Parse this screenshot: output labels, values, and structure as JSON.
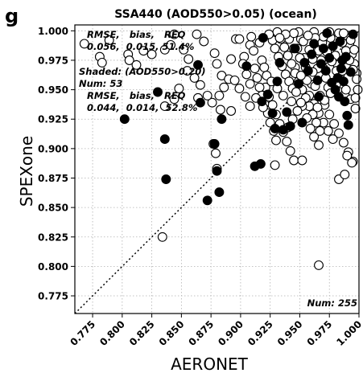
{
  "panel_label": "g",
  "chart_data": {
    "type": "scatter",
    "title": "SSA440  (AOD550>0.05) (ocean)",
    "xlabel": "AERONET",
    "ylabel": "SPEXone",
    "xlim": [
      0.76,
      1.0
    ],
    "ylim": [
      0.76,
      1.005
    ],
    "x_ticks": [
      0.775,
      0.8,
      0.825,
      0.85,
      0.875,
      0.9,
      0.925,
      0.95,
      0.975,
      1.0
    ],
    "x_tick_labels": [
      "0.775",
      "0.800",
      "0.825",
      "0.850",
      "0.875",
      "0.900",
      "0.925",
      "0.950",
      "0.975",
      "1.000"
    ],
    "y_ticks": [
      0.775,
      0.8,
      0.825,
      0.85,
      0.875,
      0.9,
      0.925,
      0.95,
      0.975,
      1.0
    ],
    "y_tick_labels": [
      "0.775",
      "0.800",
      "0.825",
      "0.850",
      "0.875",
      "0.900",
      "0.925",
      "0.950",
      "0.975",
      "1.000"
    ],
    "grid": true,
    "one_to_one_line": true,
    "stats_all": {
      "header": "RMSE,   bias,   REQ",
      "values": "0.056,  0.015, 51.4%"
    },
    "shaded_label": "Shaded: (AOD550>0.20)",
    "shaded_num": "Num: 53",
    "stats_shaded": {
      "header": "RMSE,   bias,   REQ",
      "values": "0.044,  0.014,  52.8%"
    },
    "num_all": "Num: 255",
    "series": [
      {
        "name": "all",
        "fill": "#ffffff",
        "points": [
          [
            0.768,
            0.989
          ],
          [
            0.781,
            0.978
          ],
          [
            0.783,
            0.973
          ],
          [
            0.789,
            0.992
          ],
          [
            0.805,
            0.98
          ],
          [
            0.806,
            0.975
          ],
          [
            0.812,
            0.971
          ],
          [
            0.818,
            0.983
          ],
          [
            0.825,
            0.98
          ],
          [
            0.836,
            0.984
          ],
          [
            0.841,
            0.988
          ],
          [
            0.844,
            0.997
          ],
          [
            0.852,
            0.984
          ],
          [
            0.856,
            0.976
          ],
          [
            0.863,
            0.997
          ],
          [
            0.869,
            0.991
          ],
          [
            0.878,
            0.981
          ],
          [
            0.88,
            0.972
          ],
          [
            0.884,
            0.962
          ],
          [
            0.892,
            0.976
          ],
          [
            0.896,
            0.993
          ],
          [
            0.899,
            0.993
          ],
          [
            0.903,
            0.978
          ],
          [
            0.908,
            0.988
          ],
          [
            0.911,
            0.983
          ],
          [
            0.918,
            0.975
          ],
          [
            0.92,
            0.969
          ],
          [
            0.922,
            0.962
          ],
          [
            0.927,
            0.992
          ],
          [
            0.929,
            0.985
          ],
          [
            0.932,
            0.978
          ],
          [
            0.935,
            0.97
          ],
          [
            0.938,
            0.963
          ],
          [
            0.941,
            0.957
          ],
          [
            0.944,
            0.951
          ],
          [
            0.946,
            0.969
          ],
          [
            0.948,
            0.985
          ],
          [
            0.951,
            0.993
          ],
          [
            0.954,
            0.977
          ],
          [
            0.957,
            0.962
          ],
          [
            0.96,
            0.955
          ],
          [
            0.962,
            0.999
          ],
          [
            0.964,
            0.991
          ],
          [
            0.966,
            0.983
          ],
          [
            0.968,
            0.975
          ],
          [
            0.97,
            0.968
          ],
          [
            0.972,
            0.96
          ],
          [
            0.974,
            0.952
          ],
          [
            0.976,
            0.994
          ],
          [
            0.978,
            0.987
          ],
          [
            0.98,
            0.979
          ],
          [
            0.982,
            0.971
          ],
          [
            0.984,
            0.963
          ],
          [
            0.986,
            0.955
          ],
          [
            0.988,
            0.946
          ],
          [
            0.99,
            0.996
          ],
          [
            0.992,
            0.988
          ],
          [
            0.994,
            0.98
          ],
          [
            0.996,
            0.972
          ],
          [
            0.998,
            0.964
          ],
          [
            0.949,
            0.999
          ],
          [
            0.953,
            0.991
          ],
          [
            0.958,
            0.984
          ],
          [
            0.961,
            0.976
          ],
          [
            0.965,
            0.968
          ],
          [
            0.969,
            0.99
          ],
          [
            0.973,
            0.982
          ],
          [
            0.977,
            0.974
          ],
          [
            0.981,
            0.966
          ],
          [
            0.985,
            0.958
          ],
          [
            0.989,
            0.95
          ],
          [
            0.993,
            0.942
          ],
          [
            0.997,
            0.934
          ],
          [
            0.941,
            0.993
          ],
          [
            0.945,
            0.985
          ],
          [
            0.95,
            0.977
          ],
          [
            0.955,
            0.969
          ],
          [
            0.959,
            0.961
          ],
          [
            0.963,
            0.953
          ],
          [
            0.967,
            0.945
          ],
          [
            0.971,
            0.937
          ],
          [
            0.975,
            0.929
          ],
          [
            0.979,
            0.921
          ],
          [
            0.983,
            0.913
          ],
          [
            0.987,
            0.905
          ],
          [
            0.991,
            0.897
          ],
          [
            0.995,
            0.889
          ],
          [
            0.958,
            0.945
          ],
          [
            0.962,
            0.938
          ],
          [
            0.966,
            0.93
          ],
          [
            0.97,
            0.922
          ],
          [
            0.974,
            0.915
          ],
          [
            0.978,
            0.908
          ],
          [
            0.931,
            0.999
          ],
          [
            0.934,
            0.993
          ],
          [
            0.937,
            0.986
          ],
          [
            0.94,
            0.979
          ],
          [
            0.943,
            0.972
          ],
          [
            0.946,
            0.964
          ],
          [
            0.949,
            0.957
          ],
          [
            0.952,
            0.95
          ],
          [
            0.955,
            0.943
          ],
          [
            0.958,
            0.936
          ],
          [
            0.961,
            0.929
          ],
          [
            0.964,
            0.922
          ],
          [
            0.967,
            0.915
          ],
          [
            0.952,
            0.936
          ],
          [
            0.956,
            0.926
          ],
          [
            0.959,
            0.917
          ],
          [
            0.962,
            0.91
          ],
          [
            0.966,
            0.903
          ],
          [
            0.921,
            0.952
          ],
          [
            0.924,
            0.944
          ],
          [
            0.927,
            0.937
          ],
          [
            0.93,
            0.929
          ],
          [
            0.933,
            0.921
          ],
          [
            0.936,
            0.914
          ],
          [
            0.939,
            0.906
          ],
          [
            0.942,
            0.898
          ],
          [
            0.945,
            0.89
          ],
          [
            0.912,
            0.968
          ],
          [
            0.914,
            0.96
          ],
          [
            0.916,
            0.952
          ],
          [
            0.918,
            0.945
          ],
          [
            0.92,
            0.938
          ],
          [
            0.923,
            0.93
          ],
          [
            0.925,
            0.922
          ],
          [
            0.928,
            0.915
          ],
          [
            0.93,
            0.907
          ],
          [
            0.902,
            0.972
          ],
          [
            0.905,
            0.963
          ],
          [
            0.908,
            0.955
          ],
          [
            0.89,
            0.959
          ],
          [
            0.886,
            0.952
          ],
          [
            0.882,
            0.945
          ],
          [
            0.876,
            0.939
          ],
          [
            0.872,
            0.945
          ],
          [
            0.866,
            0.954
          ],
          [
            0.861,
            0.96
          ],
          [
            0.855,
            0.966
          ],
          [
            0.848,
            0.951
          ],
          [
            0.844,
            0.942
          ],
          [
            0.836,
            0.936
          ],
          [
            0.864,
            0.943
          ],
          [
            0.877,
            0.904
          ],
          [
            0.879,
            0.896
          ],
          [
            0.88,
            0.883
          ],
          [
            0.892,
            0.932
          ],
          [
            0.883,
            0.933
          ],
          [
            0.929,
            0.886
          ],
          [
            0.952,
            0.89
          ],
          [
            0.983,
            0.874
          ],
          [
            0.988,
            0.878
          ],
          [
            0.994,
            0.888
          ],
          [
            0.99,
            0.894
          ],
          [
            0.966,
            0.801
          ],
          [
            0.834,
            0.825
          ],
          [
            0.94,
            0.918
          ],
          [
            0.944,
            0.925
          ],
          [
            0.948,
            0.932
          ],
          [
            0.951,
            0.939
          ],
          [
            0.983,
            0.998
          ],
          [
            0.986,
            0.99
          ],
          [
            0.989,
            0.983
          ],
          [
            0.992,
            0.975
          ],
          [
            0.995,
            0.967
          ],
          [
            0.998,
            0.959
          ],
          [
            0.999,
            0.95
          ],
          [
            0.997,
            0.943
          ],
          [
            0.996,
            0.984
          ],
          [
            0.993,
            0.992
          ],
          [
            0.987,
            0.998
          ],
          [
            0.975,
            0.999
          ],
          [
            0.97,
            0.995
          ],
          [
            0.963,
            0.994
          ],
          [
            0.957,
            0.996
          ],
          [
            0.945,
            0.998
          ],
          [
            0.938,
            0.997
          ],
          [
            0.933,
            0.994
          ],
          [
            0.924,
            0.997
          ],
          [
            0.916,
            0.99
          ],
          [
            0.909,
            0.995
          ],
          [
            0.986,
            0.966
          ],
          [
            0.981,
            0.955
          ],
          [
            0.976,
            0.947
          ],
          [
            0.971,
            0.941
          ],
          [
            0.965,
            0.935
          ],
          [
            0.961,
            0.965
          ],
          [
            0.956,
            0.958
          ],
          [
            0.951,
            0.962
          ],
          [
            0.947,
            0.948
          ],
          [
            0.943,
            0.94
          ],
          [
            0.936,
            0.945
          ],
          [
            0.931,
            0.951
          ],
          [
            0.926,
            0.957
          ],
          [
            0.919,
            0.935
          ],
          [
            0.913,
            0.943
          ],
          [
            0.908,
            0.936
          ],
          [
            0.904,
            0.944
          ],
          [
            0.899,
            0.951
          ],
          [
            0.895,
            0.958
          ]
        ]
      },
      {
        "name": "shaded",
        "fill": "#000000",
        "points": [
          [
            0.802,
            0.925
          ],
          [
            0.83,
            0.948
          ],
          [
            0.836,
            0.908
          ],
          [
            0.837,
            0.874
          ],
          [
            0.864,
            0.971
          ],
          [
            0.866,
            0.939
          ],
          [
            0.872,
            0.856
          ],
          [
            0.878,
            0.904
          ],
          [
            0.88,
            0.881
          ],
          [
            0.882,
            0.863
          ],
          [
            0.884,
            0.925
          ],
          [
            0.905,
            0.97
          ],
          [
            0.912,
            0.885
          ],
          [
            0.917,
            0.887
          ],
          [
            0.918,
            0.94
          ],
          [
            0.919,
            0.994
          ],
          [
            0.923,
            0.946
          ],
          [
            0.927,
            0.93
          ],
          [
            0.929,
            0.917
          ],
          [
            0.931,
            0.957
          ],
          [
            0.933,
            0.973
          ],
          [
            0.936,
            0.916
          ],
          [
            0.939,
            0.931
          ],
          [
            0.942,
            0.919
          ],
          [
            0.946,
            0.985
          ],
          [
            0.949,
            0.955
          ],
          [
            0.952,
            0.922
          ],
          [
            0.954,
            0.973
          ],
          [
            0.957,
            0.966
          ],
          [
            0.96,
            0.98
          ],
          [
            0.962,
            0.989
          ],
          [
            0.965,
            0.958
          ],
          [
            0.968,
            0.972
          ],
          [
            0.97,
            0.985
          ],
          [
            0.972,
            0.966
          ],
          [
            0.975,
            0.977
          ],
          [
            0.978,
            0.987
          ],
          [
            0.98,
            0.95
          ],
          [
            0.982,
            0.96
          ],
          [
            0.984,
            0.991
          ],
          [
            0.985,
            0.968
          ],
          [
            0.987,
            0.957
          ],
          [
            0.988,
            0.94
          ],
          [
            0.989,
            0.978
          ],
          [
            0.99,
            0.928
          ],
          [
            0.991,
            0.92
          ],
          [
            0.993,
            0.965
          ],
          [
            0.995,
            0.997
          ],
          [
            0.973,
            0.998
          ],
          [
            0.977,
            0.956
          ],
          [
            0.983,
            0.944
          ],
          [
            0.986,
            0.975
          ],
          [
            0.966,
            0.944
          ]
        ]
      }
    ]
  }
}
